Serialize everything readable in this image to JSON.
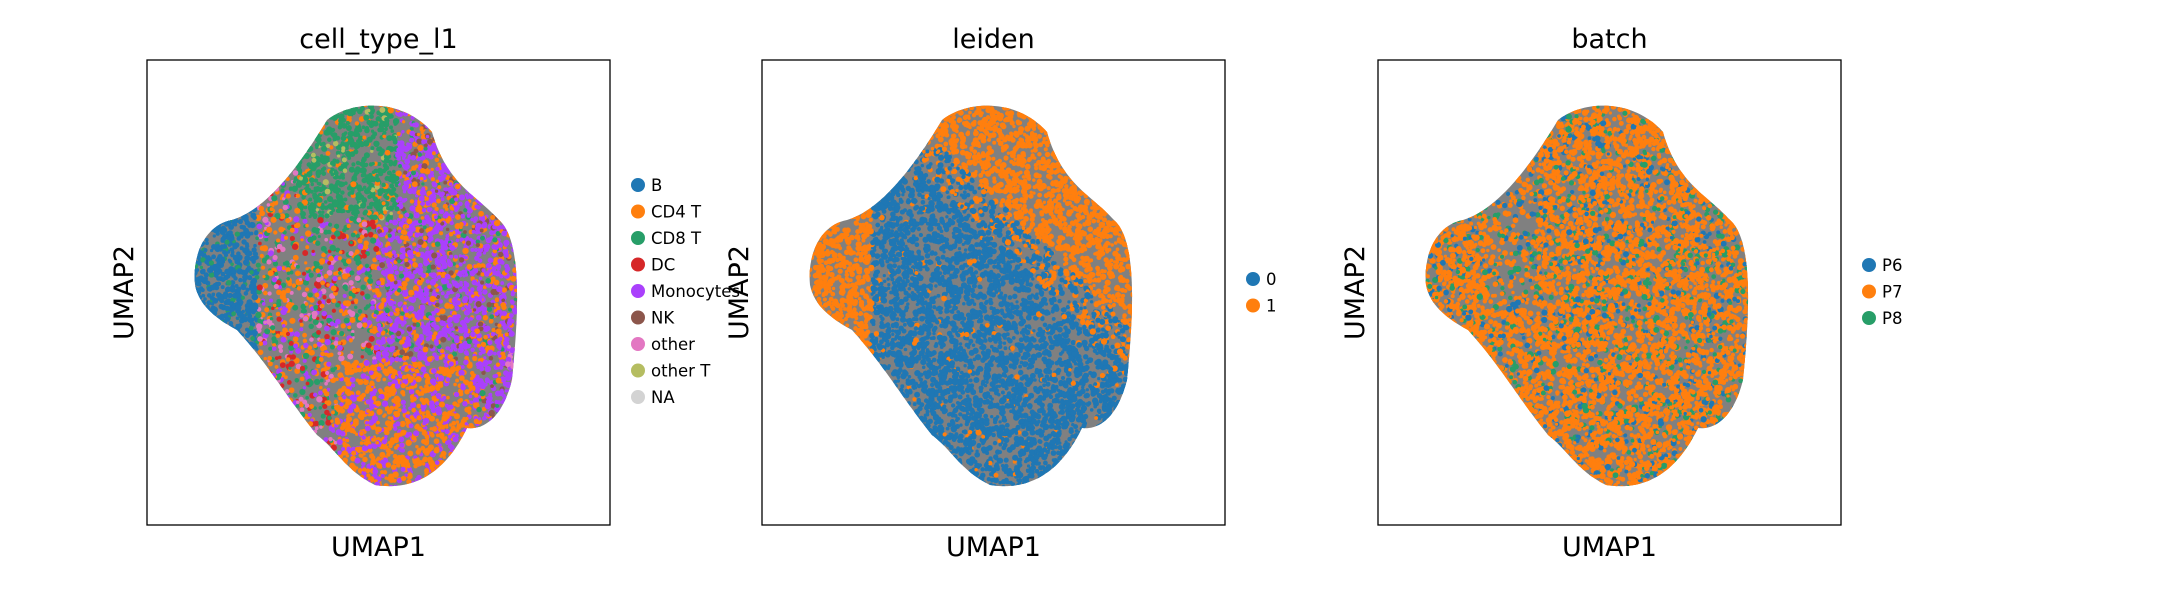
{
  "chart_data": [
    {
      "type": "scatter",
      "title": "cell_type_l1",
      "xlabel": "UMAP1",
      "ylabel": "UMAP2",
      "grid": false,
      "legend_placement": "right",
      "edges_color": "#808080",
      "legend": [
        {
          "label": "B",
          "color": "#1f77b4"
        },
        {
          "label": "CD4 T",
          "color": "#ff7f0e"
        },
        {
          "label": "CD8 T",
          "color": "#279e68"
        },
        {
          "label": "DC",
          "color": "#d62728"
        },
        {
          "label": "Monocytes",
          "color": "#aa40fc"
        },
        {
          "label": "NK",
          "color": "#8c564b"
        },
        {
          "label": "other",
          "color": "#e377c2"
        },
        {
          "label": "other T",
          "color": "#b5bd61"
        },
        {
          "label": "NA",
          "color": "#d3d3d3"
        }
      ]
    },
    {
      "type": "scatter",
      "title": "leiden",
      "xlabel": "UMAP1",
      "ylabel": "UMAP2",
      "grid": false,
      "legend_placement": "right",
      "edges_color": "#808080",
      "legend": [
        {
          "label": "0",
          "color": "#1f77b4"
        },
        {
          "label": "1",
          "color": "#ff7f0e"
        }
      ]
    },
    {
      "type": "scatter",
      "title": "batch",
      "xlabel": "UMAP1",
      "ylabel": "UMAP2",
      "grid": false,
      "legend_placement": "right",
      "edges_color": "#808080",
      "legend": [
        {
          "label": "P6",
          "color": "#1f77b4"
        },
        {
          "label": "P7",
          "color": "#ff7f0e"
        },
        {
          "label": "P8",
          "color": "#279e68"
        }
      ]
    }
  ]
}
